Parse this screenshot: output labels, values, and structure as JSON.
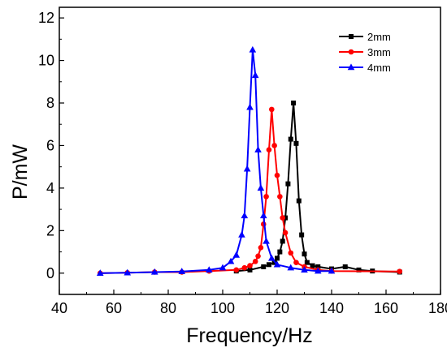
{
  "chart_data": {
    "type": "line",
    "title": "",
    "xlabel": "Frequency/Hz",
    "ylabel": "P/mW",
    "xlim": [
      40,
      180
    ],
    "ylim": [
      -1,
      12.5
    ],
    "xticks": [
      40,
      60,
      80,
      100,
      120,
      140,
      160,
      180
    ],
    "yticks": [
      0,
      2,
      4,
      6,
      8,
      10,
      12
    ],
    "grid": false,
    "legend_position": "top-right",
    "series": [
      {
        "name": "2mm",
        "color": "#000000",
        "marker": "square",
        "x": [
          105,
          110,
          115,
          117,
          119,
          120,
          121,
          122,
          123,
          124,
          125,
          126,
          127,
          128,
          129,
          130,
          131,
          133,
          135,
          140,
          145,
          150,
          155,
          165
        ],
        "y": [
          0.1,
          0.15,
          0.3,
          0.4,
          0.5,
          0.7,
          1.0,
          1.5,
          2.6,
          4.2,
          6.3,
          8.0,
          6.1,
          3.4,
          1.8,
          0.9,
          0.5,
          0.35,
          0.3,
          0.2,
          0.3,
          0.15,
          0.1,
          0.05
        ]
      },
      {
        "name": "3mm",
        "color": "#ff0000",
        "marker": "circle",
        "x": [
          55,
          65,
          75,
          85,
          95,
          105,
          108,
          110,
          112,
          113,
          114,
          115,
          116,
          117,
          118,
          119,
          120,
          121,
          122,
          123,
          125,
          127,
          130,
          135,
          140,
          165
        ],
        "y": [
          0.0,
          0.02,
          0.05,
          0.05,
          0.1,
          0.15,
          0.25,
          0.35,
          0.55,
          0.8,
          1.2,
          2.3,
          3.6,
          5.8,
          7.7,
          6.0,
          4.6,
          3.6,
          2.6,
          1.9,
          0.95,
          0.5,
          0.3,
          0.15,
          0.1,
          0.08
        ]
      },
      {
        "name": "4mm",
        "color": "#0000ff",
        "marker": "triangle",
        "x": [
          55,
          65,
          75,
          85,
          95,
          100,
          103,
          105,
          107,
          108,
          109,
          110,
          111,
          112,
          113,
          114,
          115,
          116,
          118,
          120,
          125,
          130,
          135,
          140
        ],
        "y": [
          0.0,
          0.02,
          0.05,
          0.08,
          0.15,
          0.25,
          0.55,
          0.85,
          1.8,
          2.7,
          4.9,
          7.8,
          10.5,
          9.3,
          5.8,
          4.0,
          2.7,
          1.5,
          0.7,
          0.4,
          0.25,
          0.15,
          0.1,
          0.1
        ]
      }
    ]
  }
}
